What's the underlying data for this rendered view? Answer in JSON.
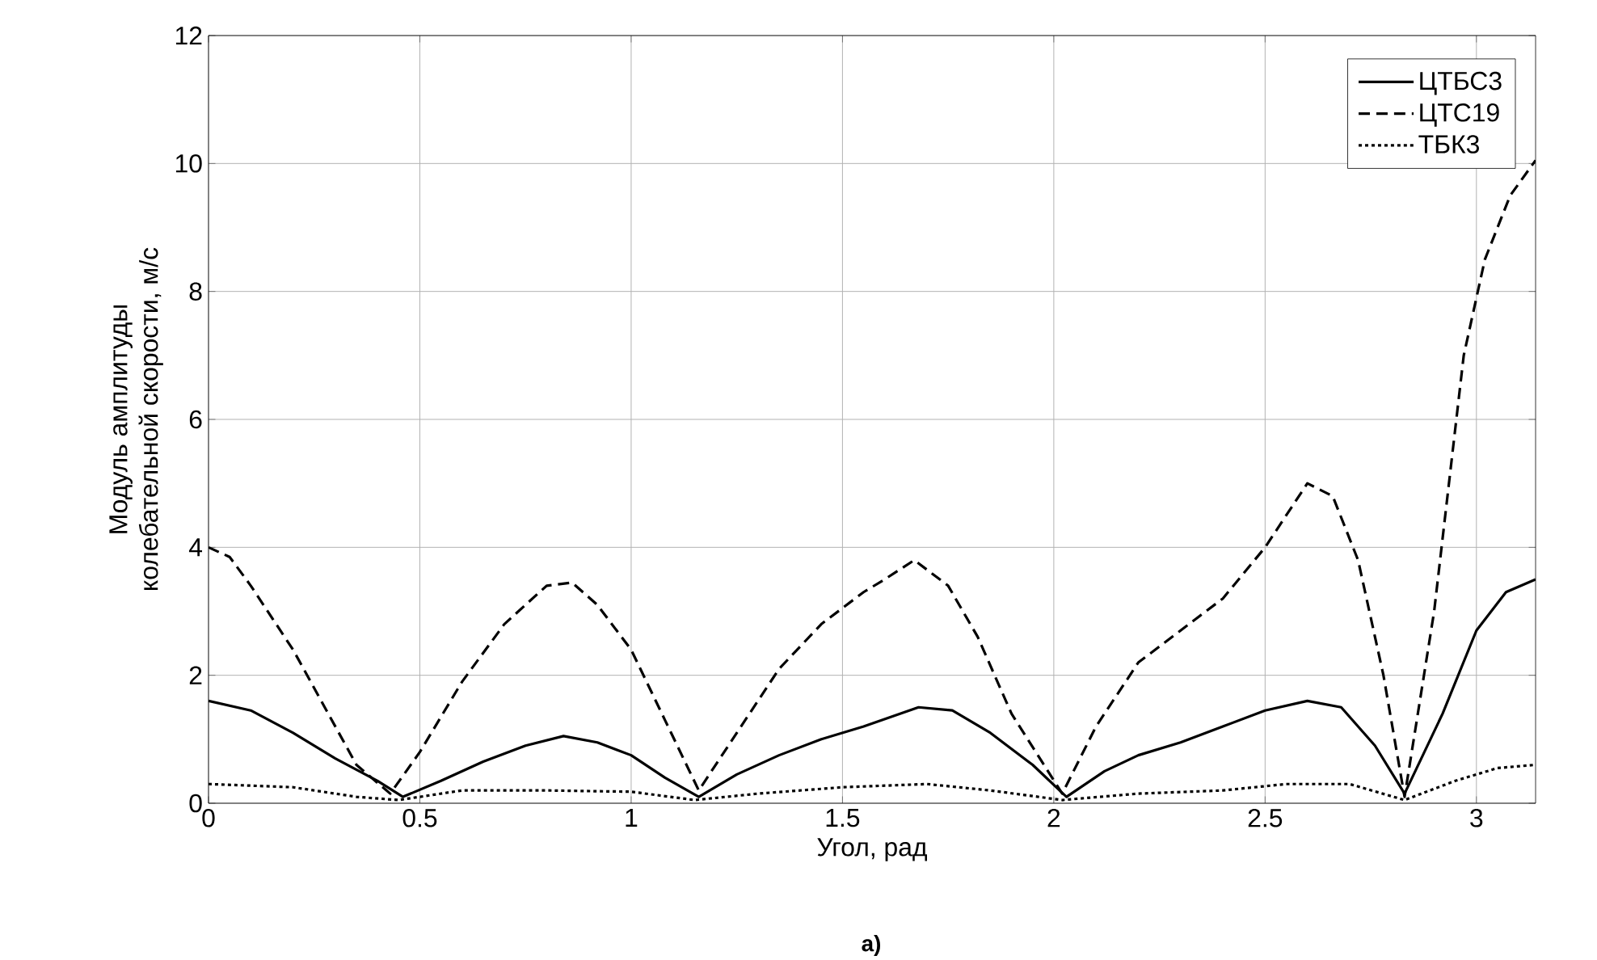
{
  "chart_data": {
    "type": "line",
    "xlabel": "Угол, рад",
    "ylabel": "Модуль амплитуды\nколебательной скорости, м/с",
    "annotations": [
      "а)"
    ],
    "xlim": [
      0,
      3.14
    ],
    "ylim": [
      0,
      12
    ],
    "xticks": [
      0,
      0.5,
      1,
      1.5,
      2,
      2.5,
      3
    ],
    "yticks": [
      0,
      2,
      4,
      6,
      8,
      10,
      12
    ],
    "grid": true,
    "legend": "top right",
    "marker": "none",
    "series": [
      {
        "name": "ЦТБС3",
        "color": "#000000",
        "line_style": "solid",
        "x": [
          0,
          0.1,
          0.2,
          0.3,
          0.4,
          0.46,
          0.55,
          0.65,
          0.75,
          0.84,
          0.92,
          1.0,
          1.08,
          1.16,
          1.25,
          1.35,
          1.45,
          1.55,
          1.68,
          1.76,
          1.85,
          1.95,
          2.03,
          2.12,
          2.2,
          2.3,
          2.4,
          2.5,
          2.6,
          2.68,
          2.76,
          2.83,
          2.92,
          3.0,
          3.07,
          3.14
        ],
        "values": [
          1.6,
          1.45,
          1.1,
          0.7,
          0.35,
          0.1,
          0.35,
          0.65,
          0.9,
          1.05,
          0.95,
          0.75,
          0.4,
          0.1,
          0.45,
          0.75,
          1.0,
          1.2,
          1.5,
          1.45,
          1.1,
          0.6,
          0.1,
          0.5,
          0.75,
          0.95,
          1.2,
          1.45,
          1.6,
          1.5,
          0.9,
          0.15,
          1.4,
          2.7,
          3.3,
          3.5
        ]
      },
      {
        "name": "ЦТС19",
        "color": "#000000",
        "line_style": "dashed",
        "x": [
          0,
          0.05,
          0.1,
          0.2,
          0.3,
          0.35,
          0.43,
          0.5,
          0.6,
          0.7,
          0.8,
          0.86,
          0.92,
          1.0,
          1.08,
          1.16,
          1.25,
          1.35,
          1.45,
          1.55,
          1.6,
          1.67,
          1.75,
          1.82,
          1.9,
          2.02,
          2.1,
          2.2,
          2.3,
          2.4,
          2.5,
          2.6,
          2.66,
          2.72,
          2.78,
          2.83,
          2.9,
          2.97,
          3.02,
          3.08,
          3.14
        ],
        "values": [
          4,
          3.85,
          3.4,
          2.4,
          1.2,
          0.6,
          0.15,
          0.8,
          1.9,
          2.8,
          3.4,
          3.45,
          3.1,
          2.4,
          1.3,
          0.2,
          1.1,
          2.1,
          2.8,
          3.3,
          3.5,
          3.8,
          3.4,
          2.6,
          1.4,
          0.15,
          1.2,
          2.2,
          2.7,
          3.2,
          4.0,
          5.0,
          4.8,
          3.8,
          2.0,
          0.1,
          3.0,
          7.0,
          8.5,
          9.5,
          10.05
        ]
      },
      {
        "name": "ТБК3",
        "color": "#000000",
        "line_style": "dotted",
        "x": [
          0,
          0.2,
          0.35,
          0.45,
          0.6,
          0.8,
          1.0,
          1.15,
          1.3,
          1.5,
          1.7,
          1.85,
          2.02,
          2.2,
          2.4,
          2.55,
          2.7,
          2.83,
          2.95,
          3.05,
          3.14
        ],
        "values": [
          0.3,
          0.25,
          0.1,
          0.05,
          0.2,
          0.2,
          0.18,
          0.05,
          0.15,
          0.25,
          0.3,
          0.2,
          0.05,
          0.15,
          0.2,
          0.3,
          0.3,
          0.05,
          0.35,
          0.55,
          0.6
        ]
      }
    ]
  }
}
